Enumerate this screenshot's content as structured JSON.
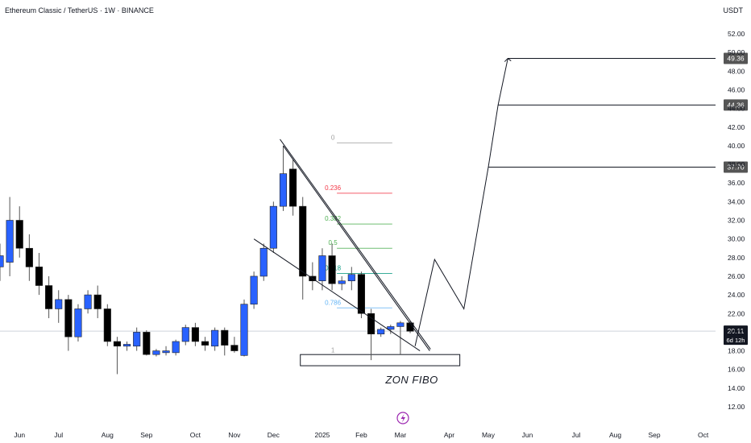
{
  "header": {
    "title": "Ethereum Classic / TetherUS · 1W · BINANCE",
    "currency": "USDT"
  },
  "colors": {
    "up": "#2962ff",
    "down": "#000000",
    "fib_0": "#9e9e9e",
    "fib_0236": "#f23645",
    "fib_0382": "#4caf50",
    "fib_05": "#4caf50",
    "fib_0618": "#089981",
    "fib_0786": "#64b5f6",
    "fib_1": "#9e9e9e",
    "price_line": "#cfd3dc",
    "target_badge": "#555555",
    "icon": "#9c27b0"
  },
  "icons": {
    "bottom": "lightning-icon"
  },
  "chart_data": {
    "type": "candlestick",
    "title": "Ethereum Classic / TetherUS · 1W · BINANCE",
    "ylim": [
      11,
      54
    ],
    "y_ticks": [
      "12.00",
      "14.00",
      "16.00",
      "18.00",
      "20.00",
      "22.00",
      "24.00",
      "26.00",
      "28.00",
      "30.00",
      "32.00",
      "34.00",
      "36.00",
      "38.00",
      "40.00",
      "42.00",
      "44.00",
      "46.00",
      "48.00",
      "50.00",
      "52.00"
    ],
    "x_ticks": [
      {
        "label": "Jun",
        "week": 2
      },
      {
        "label": "Jul",
        "week": 6
      },
      {
        "label": "Aug",
        "week": 11
      },
      {
        "label": "Sep",
        "week": 15
      },
      {
        "label": "Oct",
        "week": 20
      },
      {
        "label": "Nov",
        "week": 24
      },
      {
        "label": "Dec",
        "week": 28
      },
      {
        "label": "2025",
        "week": 33
      },
      {
        "label": "Feb",
        "week": 37
      },
      {
        "label": "Mar",
        "week": 41
      },
      {
        "label": "Apr",
        "week": 46
      },
      {
        "label": "May",
        "week": 50
      },
      {
        "label": "Jun",
        "week": 54
      },
      {
        "label": "Jul",
        "week": 59
      },
      {
        "label": "Aug",
        "week": 63
      },
      {
        "label": "Sep",
        "week": 67
      },
      {
        "label": "Oct",
        "week": 72
      }
    ],
    "candles": [
      {
        "w": 0,
        "o": 27.0,
        "h": 29.5,
        "l": 25.5,
        "c": 28.2
      },
      {
        "w": 1,
        "o": 27.5,
        "h": 34.5,
        "l": 26.0,
        "c": 32.0
      },
      {
        "w": 2,
        "o": 32.0,
        "h": 33.5,
        "l": 28.0,
        "c": 29.0
      },
      {
        "w": 3,
        "o": 29.0,
        "h": 30.5,
        "l": 25.5,
        "c": 27.0
      },
      {
        "w": 4,
        "o": 27.0,
        "h": 28.5,
        "l": 24.0,
        "c": 25.0
      },
      {
        "w": 5,
        "o": 25.0,
        "h": 26.0,
        "l": 21.5,
        "c": 22.5
      },
      {
        "w": 6,
        "o": 22.5,
        "h": 24.5,
        "l": 21.0,
        "c": 23.5
      },
      {
        "w": 7,
        "o": 23.5,
        "h": 24.0,
        "l": 18.0,
        "c": 19.5
      },
      {
        "w": 8,
        "o": 19.5,
        "h": 23.0,
        "l": 19.0,
        "c": 22.5
      },
      {
        "w": 9,
        "o": 22.5,
        "h": 24.5,
        "l": 22.0,
        "c": 24.0
      },
      {
        "w": 10,
        "o": 24.0,
        "h": 25.0,
        "l": 21.5,
        "c": 22.5
      },
      {
        "w": 11,
        "o": 22.5,
        "h": 23.0,
        "l": 18.5,
        "c": 19.0
      },
      {
        "w": 12,
        "o": 19.0,
        "h": 19.5,
        "l": 15.5,
        "c": 18.5
      },
      {
        "w": 13,
        "o": 18.5,
        "h": 19.0,
        "l": 18.0,
        "c": 18.7
      },
      {
        "w": 14,
        "o": 18.5,
        "h": 20.5,
        "l": 18.0,
        "c": 20.0
      },
      {
        "w": 15,
        "o": 20.0,
        "h": 20.2,
        "l": 17.5,
        "c": 17.6
      },
      {
        "w": 16,
        "o": 17.6,
        "h": 18.2,
        "l": 17.4,
        "c": 18.0
      },
      {
        "w": 17,
        "o": 17.8,
        "h": 18.5,
        "l": 17.5,
        "c": 18.0
      },
      {
        "w": 18,
        "o": 17.8,
        "h": 19.2,
        "l": 17.5,
        "c": 19.0
      },
      {
        "w": 19,
        "o": 19.0,
        "h": 20.8,
        "l": 18.6,
        "c": 20.5
      },
      {
        "w": 20,
        "o": 20.5,
        "h": 21.0,
        "l": 18.5,
        "c": 19.0
      },
      {
        "w": 21,
        "o": 19.0,
        "h": 19.5,
        "l": 18.0,
        "c": 18.6
      },
      {
        "w": 22,
        "o": 18.5,
        "h": 20.5,
        "l": 18.0,
        "c": 20.2
      },
      {
        "w": 23,
        "o": 20.2,
        "h": 20.5,
        "l": 17.5,
        "c": 18.6
      },
      {
        "w": 24,
        "o": 18.6,
        "h": 19.5,
        "l": 17.8,
        "c": 18.0
      },
      {
        "w": 25,
        "o": 17.5,
        "h": 23.5,
        "l": 17.4,
        "c": 23.0
      },
      {
        "w": 26,
        "o": 23.0,
        "h": 26.5,
        "l": 22.5,
        "c": 26.0
      },
      {
        "w": 27,
        "o": 26.0,
        "h": 29.5,
        "l": 25.5,
        "c": 29.0
      },
      {
        "w": 28,
        "o": 29.0,
        "h": 34.0,
        "l": 28.5,
        "c": 33.5
      },
      {
        "w": 29,
        "o": 33.5,
        "h": 40.0,
        "l": 33.0,
        "c": 37.0
      },
      {
        "w": 30,
        "o": 37.5,
        "h": 38.5,
        "l": 32.5,
        "c": 33.5
      },
      {
        "w": 31,
        "o": 33.5,
        "h": 34.5,
        "l": 23.5,
        "c": 26.0
      },
      {
        "w": 32,
        "o": 26.0,
        "h": 27.5,
        "l": 24.5,
        "c": 25.5
      },
      {
        "w": 33,
        "o": 25.5,
        "h": 29.0,
        "l": 24.5,
        "c": 28.2
      },
      {
        "w": 34,
        "o": 28.2,
        "h": 29.5,
        "l": 24.5,
        "c": 25.2
      },
      {
        "w": 35,
        "o": 25.2,
        "h": 26.0,
        "l": 24.5,
        "c": 25.5
      },
      {
        "w": 36,
        "o": 25.5,
        "h": 27.0,
        "l": 24.5,
        "c": 26.2
      },
      {
        "w": 37,
        "o": 26.2,
        "h": 26.5,
        "l": 21.5,
        "c": 22.0
      },
      {
        "w": 38,
        "o": 22.0,
        "h": 22.5,
        "l": 17.0,
        "c": 19.8
      },
      {
        "w": 39,
        "o": 19.8,
        "h": 20.5,
        "l": 19.5,
        "c": 20.3
      },
      {
        "w": 40,
        "o": 20.3,
        "h": 20.8,
        "l": 19.8,
        "c": 20.6
      },
      {
        "w": 41,
        "o": 20.6,
        "h": 21.2,
        "l": 17.6,
        "c": 21.0
      },
      {
        "w": 42,
        "o": 21.0,
        "h": 21.2,
        "l": 19.9,
        "c": 20.1
      }
    ],
    "fibonacci": [
      {
        "level": "0",
        "price": 40.3,
        "color": "#9e9e9e"
      },
      {
        "level": "0.236",
        "price": 34.9,
        "color": "#f23645"
      },
      {
        "level": "0.382",
        "price": 31.6,
        "color": "#4caf50"
      },
      {
        "level": "0.5",
        "price": 29.0,
        "color": "#4caf50"
      },
      {
        "level": "0.618",
        "price": 26.3,
        "color": "#089981"
      },
      {
        "level": "0.786",
        "price": 22.6,
        "color": "#64b5f6"
      },
      {
        "level": "1",
        "price": 17.5,
        "color": "#9e9e9e"
      }
    ],
    "zone": {
      "label": "ZON FIBO",
      "price_top": 17.6,
      "price_bottom": 16.4,
      "week_start": 31,
      "week_end": 47
    },
    "wedge_upper": [
      {
        "w": 29,
        "p": 40.0
      },
      {
        "w": 44,
        "p": 18.0
      }
    ],
    "wedge_lower": [
      {
        "w": 26,
        "p": 30.0
      },
      {
        "w": 43,
        "p": 18.0
      }
    ],
    "projection": [
      {
        "w": 42.5,
        "p": 18.5
      },
      {
        "w": 44.5,
        "p": 27.8
      },
      {
        "w": 47.5,
        "p": 22.5
      },
      {
        "w": 50,
        "p": 37.7
      },
      {
        "w": 51,
        "p": 44.36
      },
      {
        "w": 52,
        "p": 49.36
      }
    ],
    "targets": [
      {
        "label": "49.36",
        "price": 49.36,
        "from_week": 52
      },
      {
        "label": "44.36",
        "price": 44.36,
        "from_week": 51
      },
      {
        "label": "37.70",
        "price": 37.7,
        "from_week": 50
      }
    ],
    "current_price": {
      "label": "20.11",
      "price": 20.11,
      "countdown": "6d 12h"
    },
    "annotations": [
      "ZON FIBO"
    ]
  }
}
